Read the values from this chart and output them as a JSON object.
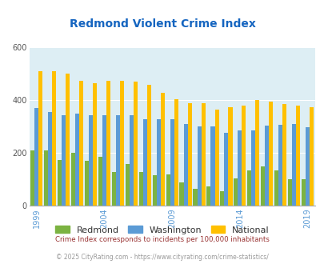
{
  "title": "Redmond Violent Crime Index",
  "years": [
    1999,
    2000,
    2001,
    2002,
    2003,
    2004,
    2005,
    2006,
    2007,
    2008,
    2009,
    2010,
    2011,
    2012,
    2013,
    2014,
    2015,
    2016,
    2017,
    2018,
    2019
  ],
  "redmond": [
    210,
    210,
    175,
    200,
    170,
    185,
    130,
    160,
    130,
    115,
    120,
    90,
    65,
    75,
    55,
    105,
    135,
    150,
    135,
    100,
    100
  ],
  "washington": [
    370,
    355,
    345,
    350,
    345,
    345,
    345,
    345,
    330,
    330,
    330,
    310,
    300,
    300,
    278,
    285,
    285,
    305,
    308,
    310,
    297
  ],
  "national": [
    510,
    510,
    500,
    475,
    465,
    475,
    475,
    470,
    460,
    430,
    405,
    390,
    390,
    365,
    375,
    380,
    400,
    395,
    385,
    380,
    375
  ],
  "redmond_color": "#7cb342",
  "washington_color": "#5b9bd5",
  "national_color": "#ffc000",
  "bg_color": "#ddeef4",
  "ylim": [
    0,
    600
  ],
  "yticks": [
    0,
    200,
    400,
    600
  ],
  "xlabel_ticks": [
    1999,
    2004,
    2009,
    2014,
    2019
  ],
  "subtitle": "Crime Index corresponds to incidents per 100,000 inhabitants",
  "footer": "© 2025 CityRating.com - https://www.cityrating.com/crime-statistics/",
  "title_color": "#1565c0",
  "subtitle_color": "#993333",
  "footer_color": "#999999",
  "legend_labels": [
    "Redmond",
    "Washington",
    "National"
  ]
}
